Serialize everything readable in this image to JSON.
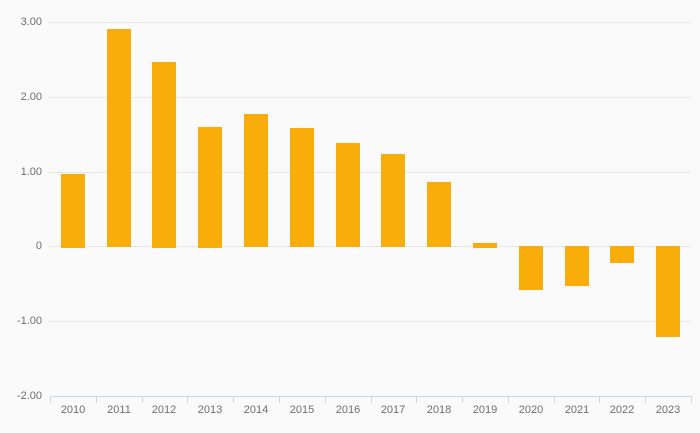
{
  "chart_style": {
    "background": "#fafafa",
    "bar_color": "#f9ad0a",
    "grid_color": "#e6e6e6",
    "axis_color": "#ccd6eb",
    "label_color": "#6e6e70"
  },
  "chart_data": {
    "type": "bar",
    "title": "",
    "xlabel": "",
    "ylabel": "",
    "categories": [
      "2010",
      "2011",
      "2012",
      "2013",
      "2014",
      "2015",
      "2016",
      "2017",
      "2018",
      "2019",
      "2020",
      "2021",
      "2022",
      "2023"
    ],
    "values": [
      0.97,
      2.9,
      2.47,
      1.6,
      1.77,
      1.58,
      1.38,
      1.23,
      0.86,
      0.05,
      -0.59,
      -0.53,
      -0.23,
      -1.21
    ],
    "ylim": [
      -2,
      3
    ],
    "yticks": [
      {
        "value": 3,
        "label": "3.00"
      },
      {
        "value": 2,
        "label": "2.00"
      },
      {
        "value": 1,
        "label": "1.00"
      },
      {
        "value": 0,
        "label": "0"
      },
      {
        "value": -1,
        "label": "-1.00"
      },
      {
        "value": -2,
        "label": "-2.00"
      }
    ],
    "grid": true,
    "legend": false
  }
}
